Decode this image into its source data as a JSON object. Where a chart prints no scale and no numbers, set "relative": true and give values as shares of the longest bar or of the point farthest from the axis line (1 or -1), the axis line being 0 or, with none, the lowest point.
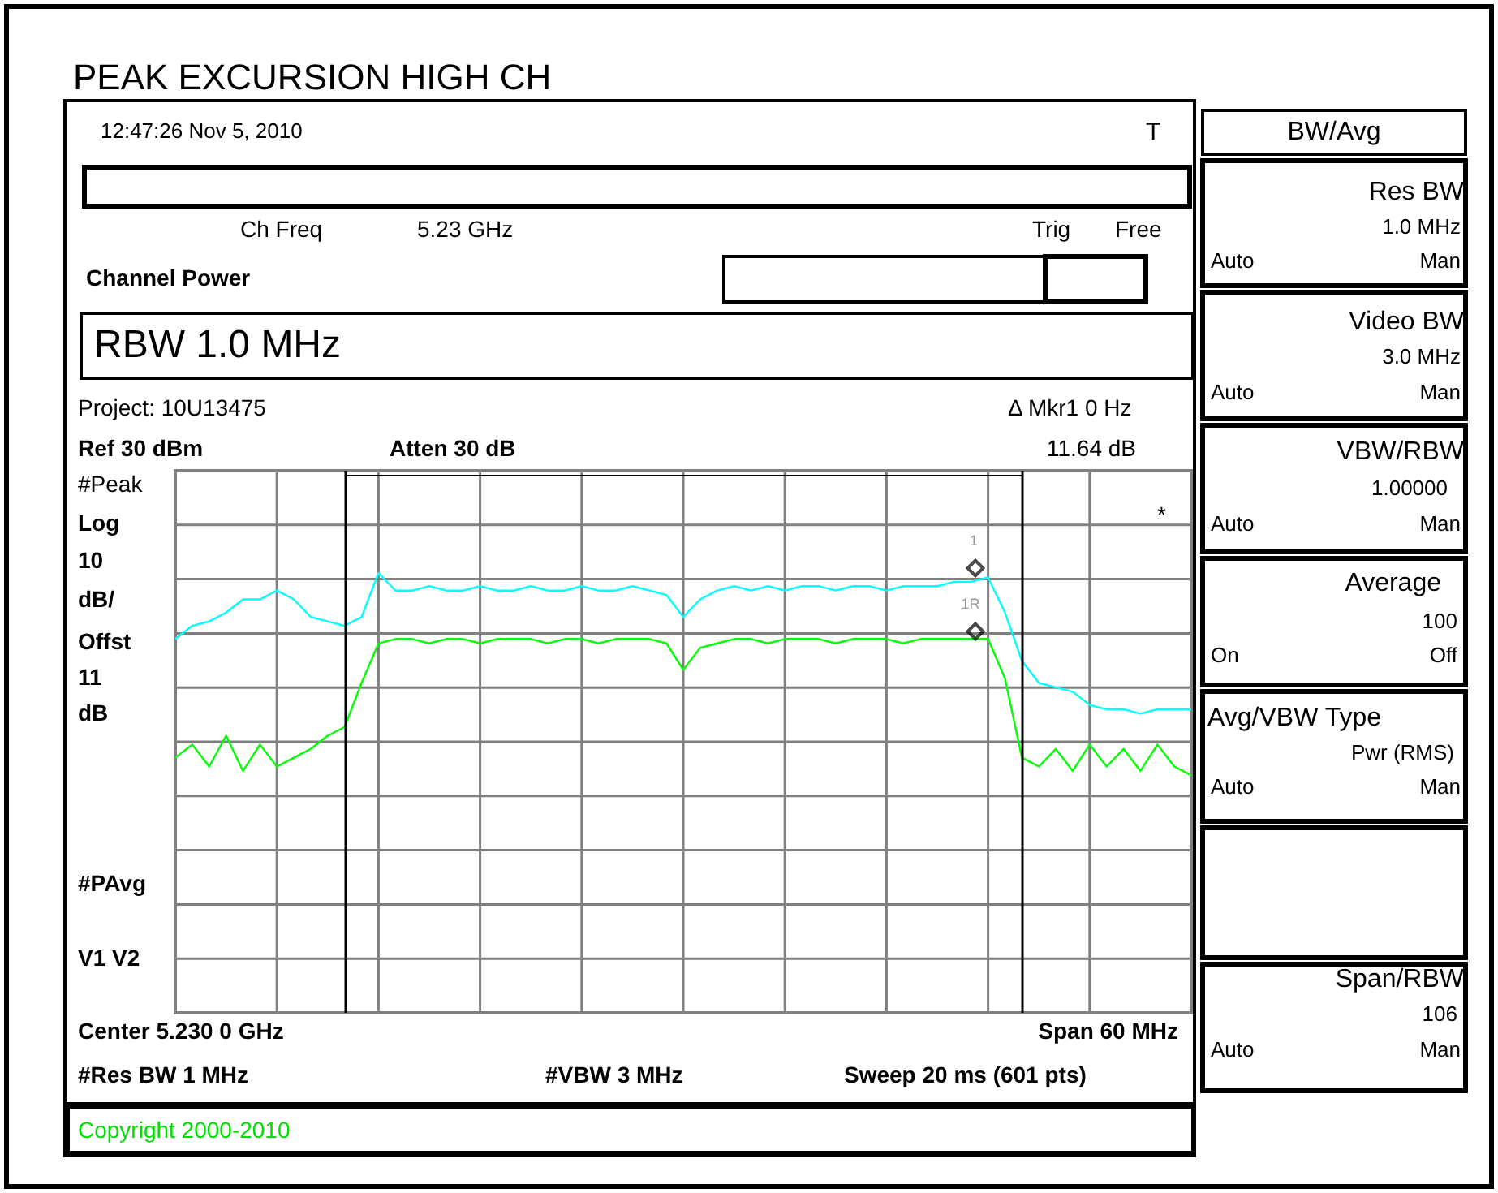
{
  "chart_data": {
    "type": "line",
    "title": "PEAK EXCURSION HIGH CH",
    "relative": true,
    "grid": true,
    "marker": "none",
    "line_style": "solid",
    "categories": [
      null,
      null,
      null,
      null,
      null,
      null,
      null,
      null,
      null,
      null,
      null,
      null,
      null,
      null,
      null,
      null,
      null,
      null,
      null,
      null,
      null,
      null,
      null,
      null,
      null,
      null,
      null,
      null,
      null,
      null,
      null,
      null,
      null,
      null,
      null,
      null,
      null,
      null,
      null,
      null,
      null,
      null,
      null,
      null,
      null,
      null,
      null,
      null,
      null,
      null,
      null,
      null,
      null,
      null,
      null,
      null,
      null,
      null,
      null,
      null,
      null
    ],
    "series": [
      {
        "color": "#00ffff",
        "values": [
          0.85,
          0.88,
          0.89,
          0.91,
          0.94,
          0.94,
          0.96,
          0.94,
          0.9,
          0.89,
          0.88,
          0.9,
          1.0,
          0.96,
          0.96,
          0.97,
          0.96,
          0.96,
          0.97,
          0.96,
          0.96,
          0.97,
          0.96,
          0.96,
          0.97,
          0.96,
          0.96,
          0.97,
          0.96,
          0.95,
          0.9,
          0.94,
          0.96,
          0.97,
          0.96,
          0.97,
          0.96,
          0.97,
          0.97,
          0.96,
          0.97,
          0.97,
          0.96,
          0.97,
          0.97,
          0.97,
          0.98,
          0.98,
          0.99,
          0.91,
          0.8,
          0.75,
          0.74,
          0.73,
          0.7,
          0.69,
          0.69,
          0.68,
          0.69,
          0.69,
          0.69
        ]
      },
      {
        "color": "#00ff00",
        "values": [
          0.58,
          0.61,
          0.56,
          0.63,
          0.55,
          0.61,
          0.56,
          0.58,
          0.6,
          0.63,
          0.65,
          0.75,
          0.84,
          0.85,
          0.85,
          0.84,
          0.85,
          0.85,
          0.84,
          0.85,
          0.85,
          0.85,
          0.84,
          0.85,
          0.85,
          0.84,
          0.85,
          0.85,
          0.85,
          0.84,
          0.78,
          0.83,
          0.84,
          0.85,
          0.85,
          0.84,
          0.85,
          0.85,
          0.85,
          0.84,
          0.85,
          0.85,
          0.85,
          0.84,
          0.85,
          0.85,
          0.85,
          0.85,
          0.85,
          0.76,
          0.58,
          0.56,
          0.6,
          0.55,
          0.61,
          0.56,
          0.6,
          0.55,
          0.61,
          0.56,
          0.54
        ]
      }
    ],
    "annotations": [
      "12:47:26  Nov 5, 2010",
      "T",
      "Ch Freq",
      "5.23 GHz",
      "Trig",
      "Free",
      "Channel Power",
      "RBW 1.0 MHz",
      "Project: 10U13475",
      "Δ Mkr1  0 Hz",
      "Ref 30 dBm",
      "Atten 30 dB",
      "11.64 dB",
      "#Peak",
      "Log",
      "10",
      "dB/",
      "Offst",
      "11",
      "dB",
      "#PAvg",
      "V1  V2",
      "Center 5.230 0 GHz",
      "Span 60 MHz",
      "#Res BW 1 MHz",
      "#VBW 3 MHz",
      "Sweep 20 ms (601 pts)",
      "Copyright 2000-2010",
      "*",
      "1",
      "1R",
      "BW/Avg",
      "Res BW",
      "1.0 MHz",
      "Auto",
      "Man",
      "Video BW",
      "3.0 MHz",
      "Auto",
      "Man",
      "VBW/RBW",
      "1.00000",
      "Auto",
      "Man",
      "Average",
      "100",
      "On",
      "Off",
      "Avg/VBW Type",
      "Pwr (RMS)",
      "Auto",
      "Man",
      "Span/RBW",
      "106",
      "Auto",
      "Man"
    ]
  }
}
